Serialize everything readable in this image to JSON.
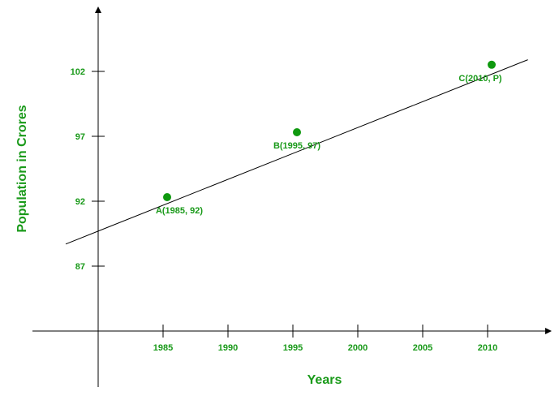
{
  "colors": {
    "accent": "#1a9a1a",
    "point": "#0f990f",
    "axis": "#000000",
    "line": "#000000"
  },
  "chart_data": {
    "type": "line",
    "title": "",
    "xlabel": "Years",
    "ylabel": "Population in Crores",
    "xlim": [
      1980,
      2015
    ],
    "ylim": [
      82,
      107
    ],
    "x_ticks": [
      1985,
      1990,
      1995,
      2000,
      2005,
      2010
    ],
    "y_ticks": [
      87,
      92,
      97,
      102
    ],
    "grid": false,
    "line": {
      "from": [
        1977.5,
        88.7
      ],
      "to": [
        2013.1,
        102.9
      ]
    },
    "points": [
      {
        "label": "A(1985, 92)",
        "x": 1985,
        "y": 92
      },
      {
        "label": "B(1995, 97)",
        "x": 1995,
        "y": 97
      },
      {
        "label": "C(2010, P)",
        "x": 2010,
        "y": 102.2
      }
    ]
  }
}
